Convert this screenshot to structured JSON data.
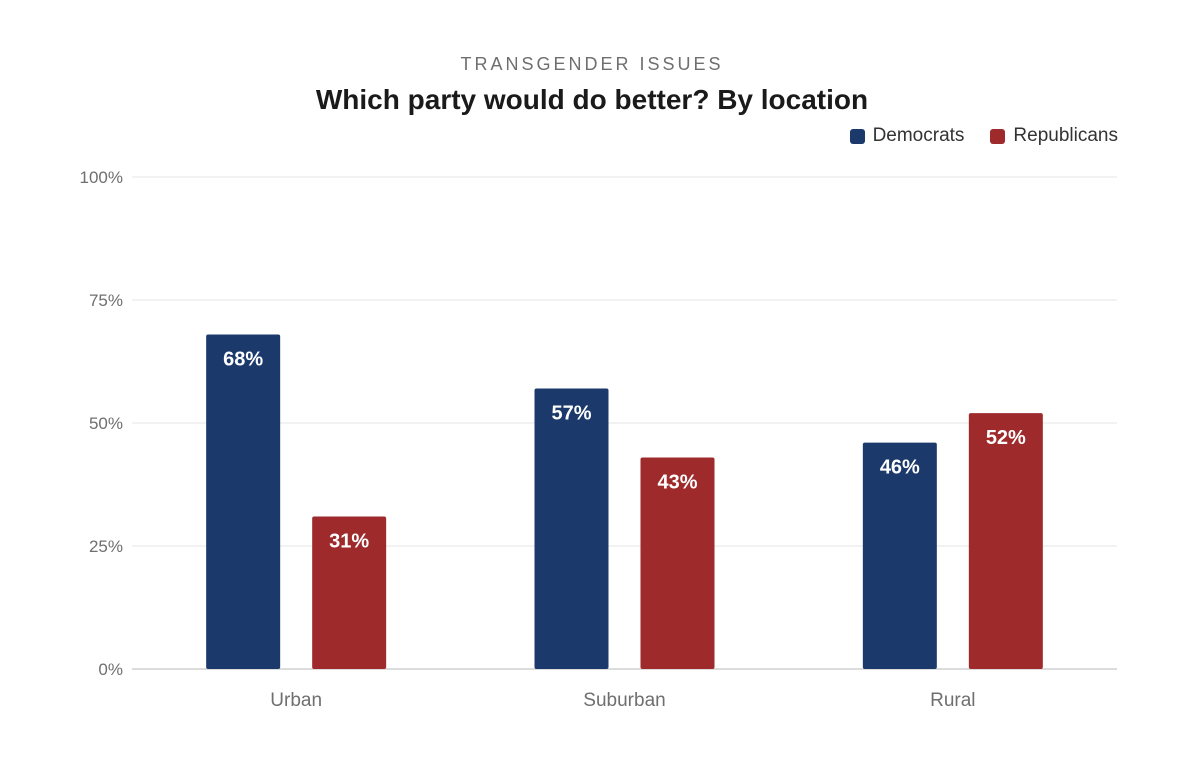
{
  "chart_data": {
    "type": "bar",
    "kicker": "TRANSGENDER ISSUES",
    "title": "Which party would do better? By location",
    "categories": [
      "Urban",
      "Suburban",
      "Rural"
    ],
    "series": [
      {
        "name": "Democrats",
        "values": [
          68,
          57,
          46
        ],
        "labels": [
          "68%",
          "57%",
          "46%"
        ],
        "color": "#1b3a6b"
      },
      {
        "name": "Republicans",
        "values": [
          31,
          43,
          52
        ],
        "labels": [
          "31%",
          "43%",
          "52%"
        ],
        "color": "#9e2a2b"
      }
    ],
    "ylim": [
      0,
      100
    ],
    "yticks": [
      0,
      25,
      50,
      75,
      100
    ],
    "ytick_labels": [
      "0%",
      "25%",
      "50%",
      "75%",
      "100%"
    ],
    "xlabel": "",
    "ylabel": "",
    "grid": true,
    "legend_position": "top-right",
    "grid_color": "#e6e6e6",
    "axis_color": "#d0d0d0"
  }
}
